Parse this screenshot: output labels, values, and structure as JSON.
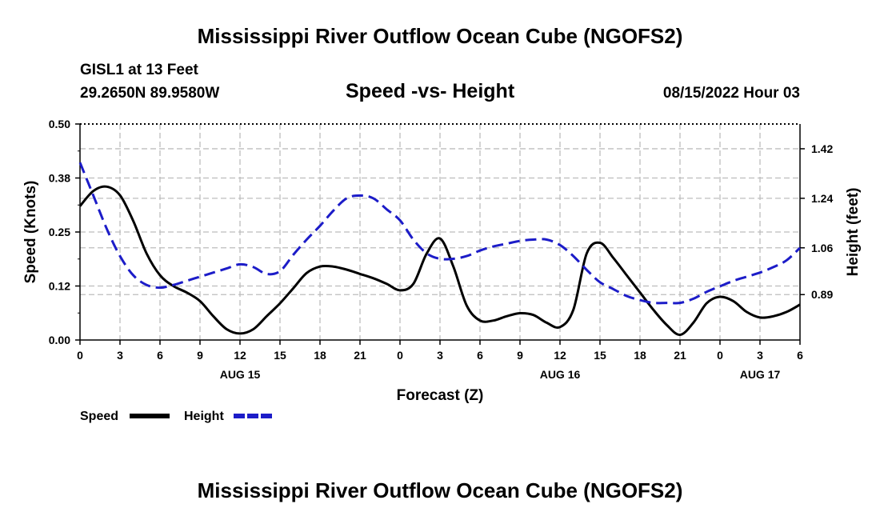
{
  "header": {
    "title": "Mississippi River Outflow Ocean Cube (NGOFS2)",
    "station": "GISL1 at 13 Feet",
    "coords": "29.2650N  89.9580W",
    "subtitle": "Speed -vs- Height",
    "datetime": "08/15/2022 Hour 03"
  },
  "footer": {
    "title": "Mississippi River Outflow Ocean Cube (NGOFS2)"
  },
  "colors": {
    "speed": "#000000",
    "height": "#1c1cc8",
    "grid": "#bdbdbd"
  },
  "chart_data": {
    "type": "line",
    "title": "Speed -vs- Height",
    "xlabel": "Forecast (Z)",
    "ylabel_left": "Speed (Knots)",
    "ylabel_right": "Height (feet)",
    "x_hours_range": [
      0,
      54
    ],
    "ylim_left": [
      0,
      0.5
    ],
    "ylim_right": [
      0.725,
      1.51
    ],
    "x_tick_hours": [
      0,
      3,
      6,
      9,
      12,
      15,
      18,
      21,
      24,
      27,
      30,
      33,
      36,
      39,
      42,
      45,
      48,
      51,
      54
    ],
    "x_tick_labels": [
      "0",
      "3",
      "6",
      "9",
      "12",
      "15",
      "18",
      "21",
      "0",
      "3",
      "6",
      "9",
      "12",
      "15",
      "18",
      "21",
      "0",
      "3",
      "6"
    ],
    "day_labels": [
      {
        "hour": 12,
        "label": "AUG 15"
      },
      {
        "hour": 36,
        "label": "AUG 16"
      },
      {
        "hour": 51,
        "label": "AUG 17"
      }
    ],
    "left_ticks": [
      0.0,
      0.125,
      0.25,
      0.375,
      0.5
    ],
    "left_tick_labels": [
      "0.00",
      "0.12",
      "0.25",
      "0.38",
      "0.50"
    ],
    "right_ticks": [
      0.89,
      1.06,
      1.24,
      1.42
    ],
    "right_tick_labels": [
      "0.89",
      "1.06",
      "1.24",
      "1.42"
    ],
    "series": [
      {
        "name": "Speed",
        "axis": "left",
        "style": "solid",
        "x": [
          0,
          1,
          2,
          3,
          4,
          5,
          6,
          7,
          8,
          9,
          10,
          11,
          12,
          13,
          14,
          15,
          16,
          17,
          18,
          19,
          20,
          21,
          22,
          23,
          24,
          25,
          26,
          27,
          28,
          29,
          30,
          31,
          32,
          33,
          34,
          35,
          36,
          37,
          38,
          39,
          40,
          41,
          42,
          43,
          44,
          45,
          46,
          47,
          48,
          49,
          50,
          51,
          52,
          53,
          54
        ],
        "values": [
          0.31,
          0.345,
          0.355,
          0.335,
          0.275,
          0.2,
          0.15,
          0.125,
          0.11,
          0.09,
          0.055,
          0.025,
          0.015,
          0.025,
          0.055,
          0.085,
          0.12,
          0.155,
          0.17,
          0.17,
          0.163,
          0.153,
          0.143,
          0.13,
          0.115,
          0.13,
          0.2,
          0.235,
          0.17,
          0.08,
          0.045,
          0.045,
          0.055,
          0.062,
          0.058,
          0.04,
          0.03,
          0.07,
          0.2,
          0.225,
          0.19,
          0.15,
          0.11,
          0.07,
          0.035,
          0.012,
          0.04,
          0.085,
          0.1,
          0.09,
          0.065,
          0.052,
          0.055,
          0.065,
          0.082
        ]
      },
      {
        "name": "Height",
        "axis": "right",
        "style": "dashed",
        "x": [
          0,
          1,
          2,
          3,
          4,
          5,
          6,
          7,
          8,
          9,
          10,
          11,
          12,
          13,
          14,
          15,
          16,
          17,
          18,
          19,
          20,
          21,
          22,
          23,
          24,
          25,
          26,
          27,
          28,
          29,
          30,
          31,
          32,
          33,
          34,
          35,
          36,
          37,
          38,
          39,
          40,
          41,
          42,
          43,
          44,
          45,
          46,
          47,
          48,
          49,
          50,
          51,
          52,
          53,
          54
        ],
        "values": [
          1.37,
          1.25,
          1.13,
          1.03,
          0.96,
          0.925,
          0.915,
          0.925,
          0.94,
          0.955,
          0.97,
          0.985,
          1.0,
          0.99,
          0.965,
          0.975,
          1.035,
          1.09,
          1.14,
          1.195,
          1.24,
          1.25,
          1.24,
          1.2,
          1.16,
          1.09,
          1.04,
          1.02,
          1.02,
          1.03,
          1.05,
          1.065,
          1.075,
          1.085,
          1.09,
          1.09,
          1.07,
          1.03,
          0.98,
          0.935,
          0.91,
          0.885,
          0.87,
          0.86,
          0.86,
          0.86,
          0.875,
          0.9,
          0.92,
          0.94,
          0.955,
          0.97,
          0.99,
          1.015,
          1.06
        ]
      }
    ],
    "legend": [
      {
        "label": "Speed",
        "series": "Speed"
      },
      {
        "label": "Height",
        "series": "Height"
      }
    ]
  }
}
